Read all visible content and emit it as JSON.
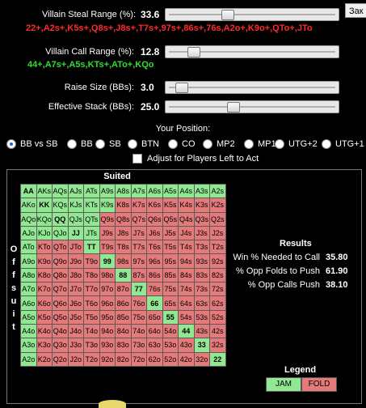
{
  "window_tab": "Зак",
  "sliders": {
    "villain_steal": {
      "label": "Villain Steal Range (%):",
      "value": "33.6",
      "level": 0.34
    },
    "villain_call": {
      "label": "Villain Call Range (%):",
      "value": "12.8",
      "level": 0.13
    },
    "raise_size": {
      "label": "Raise Size (BBs):",
      "value": "3.0",
      "level": 0.05
    },
    "effective_stack": {
      "label": "Effective Stack (BBs):",
      "value": "25.0",
      "level": 0.38
    }
  },
  "steal_range_text": "22+,A2s+,K5s+,Q8s+,J8s+,T7s+,97s+,86s+,76s,A2o+,K9o+,QTo+,JTo",
  "call_range_text": "44+,A7s+,A5s,KTs+,ATo+,KQo",
  "your_position": {
    "heading": "Your Position:",
    "options": [
      "BB vs SB",
      "BB",
      "SB",
      "BTN",
      "CO",
      "MP2",
      "MP1",
      "UTG+2",
      "UTG+1"
    ],
    "selected": "BB vs SB"
  },
  "adjust_checkbox": {
    "label": "Adjust for Players Left to Act",
    "checked": false
  },
  "grid": {
    "suited_label": "Suited",
    "offsuit_label": "Offsuit",
    "rows": [
      [
        "AA",
        "AKs",
        "AQs",
        "AJs",
        "ATs",
        "A9s",
        "A8s",
        "A7s",
        "A6s",
        "A5s",
        "A4s",
        "A3s",
        "A2s"
      ],
      [
        "AKo",
        "KK",
        "KQs",
        "KJs",
        "KTs",
        "K9s",
        "K8s",
        "K7s",
        "K6s",
        "K5s",
        "K4s",
        "K3s",
        "K2s"
      ],
      [
        "AQo",
        "KQo",
        "QQ",
        "QJs",
        "QTs",
        "Q9s",
        "Q8s",
        "Q7s",
        "Q6s",
        "Q5s",
        "Q4s",
        "Q3s",
        "Q2s"
      ],
      [
        "AJo",
        "KJo",
        "QJo",
        "JJ",
        "JTs",
        "J9s",
        "J8s",
        "J7s",
        "J6s",
        "J5s",
        "J4s",
        "J3s",
        "J2s"
      ],
      [
        "ATo",
        "KTo",
        "QTo",
        "JTo",
        "TT",
        "T9s",
        "T8s",
        "T7s",
        "T6s",
        "T5s",
        "T4s",
        "T3s",
        "T2s"
      ],
      [
        "A9o",
        "K9o",
        "Q9o",
        "J9o",
        "T9o",
        "99",
        "98s",
        "97s",
        "96s",
        "95s",
        "94s",
        "93s",
        "92s"
      ],
      [
        "A8o",
        "K8o",
        "Q8o",
        "J8o",
        "T8o",
        "98o",
        "88",
        "87s",
        "86s",
        "85s",
        "84s",
        "83s",
        "82s"
      ],
      [
        "A7o",
        "K7o",
        "Q7o",
        "J7o",
        "T7o",
        "97o",
        "87o",
        "77",
        "76s",
        "75s",
        "74s",
        "73s",
        "72s"
      ],
      [
        "A6o",
        "K6o",
        "Q6o",
        "J6o",
        "T6o",
        "96o",
        "86o",
        "76o",
        "66",
        "65s",
        "64s",
        "63s",
        "62s"
      ],
      [
        "A5o",
        "K5o",
        "Q5o",
        "J5o",
        "T5o",
        "95o",
        "85o",
        "75o",
        "65o",
        "55",
        "54s",
        "53s",
        "52s"
      ],
      [
        "A4o",
        "K4o",
        "Q4o",
        "J4o",
        "T4o",
        "94o",
        "84o",
        "74o",
        "64o",
        "54o",
        "44",
        "43s",
        "42s"
      ],
      [
        "A3o",
        "K3o",
        "Q3o",
        "J3o",
        "T3o",
        "93o",
        "83o",
        "73o",
        "63o",
        "53o",
        "43o",
        "33",
        "32s"
      ],
      [
        "A2o",
        "K2o",
        "Q2o",
        "J2o",
        "T2o",
        "92o",
        "82o",
        "72o",
        "62o",
        "52o",
        "42o",
        "32o",
        "22"
      ]
    ],
    "jam": [
      [
        1,
        1,
        1,
        1,
        1,
        1,
        1,
        1,
        1,
        1,
        1,
        1,
        1
      ],
      [
        1,
        1,
        1,
        1,
        1,
        1,
        0,
        0,
        0,
        0,
        0,
        0,
        0
      ],
      [
        1,
        1,
        1,
        1,
        1,
        0,
        0,
        0,
        0,
        0,
        0,
        0,
        0
      ],
      [
        1,
        1,
        1,
        1,
        1,
        0,
        0,
        0,
        0,
        0,
        0,
        0,
        0
      ],
      [
        1,
        0,
        0,
        0,
        1,
        0,
        0,
        0,
        0,
        0,
        0,
        0,
        0
      ],
      [
        1,
        0,
        0,
        0,
        0,
        1,
        0,
        0,
        0,
        0,
        0,
        0,
        0
      ],
      [
        1,
        0,
        0,
        0,
        0,
        0,
        1,
        0,
        0,
        0,
        0,
        0,
        0
      ],
      [
        1,
        0,
        0,
        0,
        0,
        0,
        0,
        1,
        0,
        0,
        0,
        0,
        0
      ],
      [
        1,
        0,
        0,
        0,
        0,
        0,
        0,
        0,
        1,
        0,
        0,
        0,
        0
      ],
      [
        1,
        0,
        0,
        0,
        0,
        0,
        0,
        0,
        0,
        1,
        0,
        0,
        0
      ],
      [
        1,
        0,
        0,
        0,
        0,
        0,
        0,
        0,
        0,
        0,
        1,
        0,
        0
      ],
      [
        1,
        0,
        0,
        0,
        0,
        0,
        0,
        0,
        0,
        0,
        0,
        1,
        0
      ],
      [
        1,
        0,
        0,
        0,
        0,
        0,
        0,
        0,
        0,
        0,
        0,
        0,
        1
      ]
    ]
  },
  "results": {
    "title": "Results",
    "rows": [
      {
        "label": "Win % Needed to Call",
        "value": "35.80"
      },
      {
        "label": "% Opp Folds to Push",
        "value": "61.90"
      },
      {
        "label": "% Opp Calls Push",
        "value": "38.10"
      }
    ]
  },
  "legend": {
    "title": "Legend",
    "jam": "JAM",
    "fold": "FOLD"
  },
  "colors": {
    "jam": "#92e792",
    "fold": "#e57a7a",
    "range_red": "#ff2a2a",
    "range_green": "#33dd33"
  }
}
